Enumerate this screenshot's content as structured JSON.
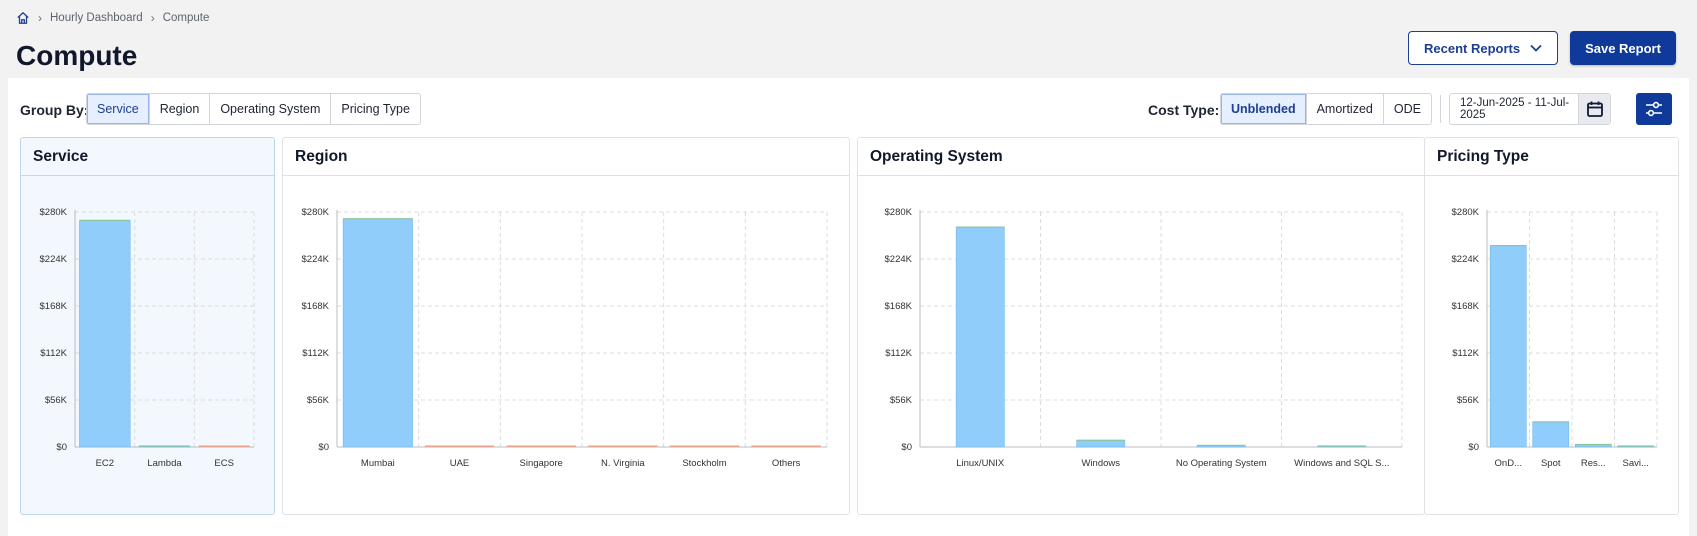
{
  "breadcrumb": {
    "home_icon": "home-icon",
    "items": [
      "Hourly Dashboard",
      "Compute"
    ],
    "sep": "›"
  },
  "page_title": "Compute",
  "header_buttons": {
    "recent_reports": "Recent Reports",
    "save_report": "Save Report"
  },
  "group_by": {
    "label": "Group By:",
    "options": [
      "Service",
      "Region",
      "Operating System",
      "Pricing Type"
    ],
    "selected": "Service"
  },
  "cost_type": {
    "label": "Cost Type:",
    "options": [
      "Unblended",
      "Amortized",
      "ODE"
    ],
    "selected": "Unblended"
  },
  "date_range": {
    "value": "12-Jun-2025 - 11-Jul-2025",
    "icon": "calendar-icon"
  },
  "filter_icon": "sliders-icon",
  "colors": {
    "bar": "#90cdfb",
    "bar_edge": "#6fb7ea",
    "accent": "#0f3a9a",
    "baseline_mark": "#e8a28a",
    "small_bar_green": "#7ec8a9"
  },
  "chart_data": [
    {
      "type": "bar",
      "title": "Service",
      "categories": [
        "EC2",
        "Lambda",
        "ECS"
      ],
      "values": [
        270000,
        1200,
        400
      ],
      "ylim": [
        0,
        280000
      ],
      "yticks": [
        "$0",
        "$56K",
        "$112K",
        "$168K",
        "$224K",
        "$280K"
      ],
      "grid": true
    },
    {
      "type": "bar",
      "title": "Region",
      "categories": [
        "Mumbai",
        "UAE",
        "Singapore",
        "N. Virginia",
        "Stockholm",
        "Others"
      ],
      "values": [
        272000,
        300,
        300,
        300,
        300,
        400
      ],
      "ylim": [
        0,
        280000
      ],
      "yticks": [
        "$0",
        "$56K",
        "$112K",
        "$168K",
        "$224K",
        "$280K"
      ],
      "grid": true
    },
    {
      "type": "bar",
      "title": "Operating System",
      "categories": [
        "Linux/UNIX",
        "Windows",
        "No Operating System",
        "Windows and SQL S..."
      ],
      "values": [
        262000,
        8000,
        2000,
        1200
      ],
      "ylim": [
        0,
        280000
      ],
      "yticks": [
        "$0",
        "$56K",
        "$112K",
        "$168K",
        "$224K",
        "$280K"
      ],
      "grid": true
    },
    {
      "type": "bar",
      "title": "Pricing Type",
      "categories": [
        "OnD...",
        "Spot",
        "Res...",
        "Savi..."
      ],
      "values": [
        240000,
        30000,
        3000,
        1000
      ],
      "ylim": [
        0,
        280000
      ],
      "yticks": [
        "$0",
        "$56K",
        "$112K",
        "$168K",
        "$224K",
        "$280K"
      ],
      "grid": true
    }
  ]
}
